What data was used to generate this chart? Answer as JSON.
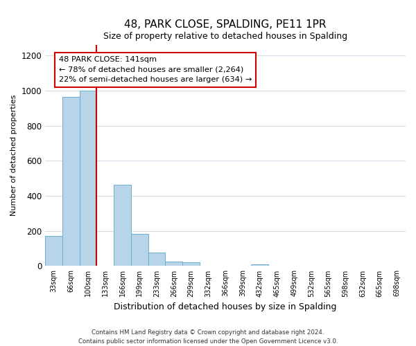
{
  "title": "48, PARK CLOSE, SPALDING, PE11 1PR",
  "subtitle": "Size of property relative to detached houses in Spalding",
  "xlabel": "Distribution of detached houses by size in Spalding",
  "ylabel": "Number of detached properties",
  "bar_color": "#b8d4e8",
  "bar_edge_color": "#6aafd4",
  "categories": [
    "33sqm",
    "66sqm",
    "100sqm",
    "133sqm",
    "166sqm",
    "199sqm",
    "233sqm",
    "266sqm",
    "299sqm",
    "332sqm",
    "366sqm",
    "399sqm",
    "432sqm",
    "465sqm",
    "499sqm",
    "532sqm",
    "565sqm",
    "598sqm",
    "632sqm",
    "665sqm",
    "698sqm"
  ],
  "values": [
    170,
    965,
    1000,
    0,
    465,
    185,
    75,
    25,
    20,
    0,
    0,
    0,
    10,
    0,
    0,
    0,
    0,
    0,
    0,
    0,
    0
  ],
  "ylim": [
    0,
    1260
  ],
  "yticks": [
    0,
    200,
    400,
    600,
    800,
    1000,
    1200
  ],
  "property_line_index": 3,
  "property_line_color": "#cc0000",
  "annotation_title": "48 PARK CLOSE: 141sqm",
  "annotation_line1": "← 78% of detached houses are smaller (2,264)",
  "annotation_line2": "22% of semi-detached houses are larger (634) →",
  "annotation_box_color": "#ffffff",
  "annotation_box_edge_color": "#cc0000",
  "footer_line1": "Contains HM Land Registry data © Crown copyright and database right 2024.",
  "footer_line2": "Contains public sector information licensed under the Open Government Licence v3.0.",
  "title_fontsize": 11,
  "subtitle_fontsize": 9,
  "xlabel_fontsize": 9,
  "ylabel_fontsize": 8,
  "grid_color": "#d4dde8"
}
